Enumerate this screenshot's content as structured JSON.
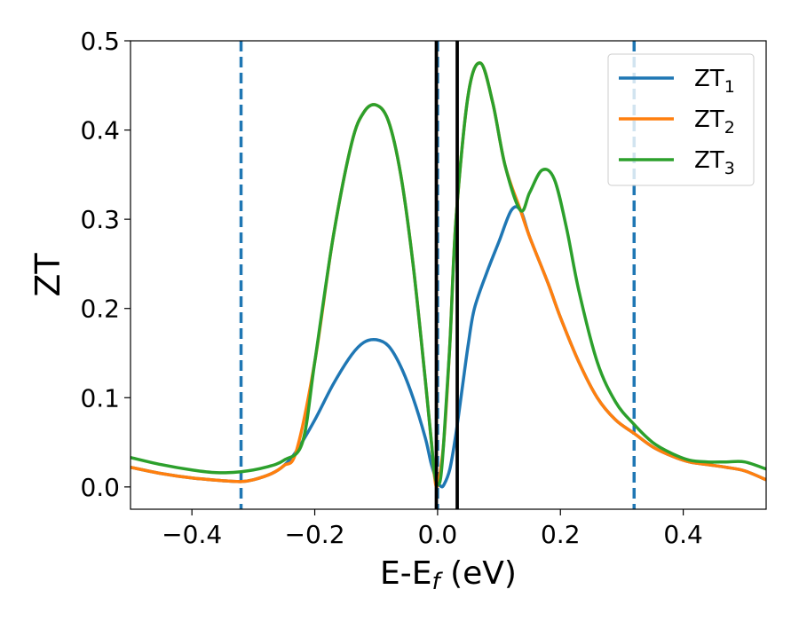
{
  "chart_data": {
    "type": "line",
    "xlabel": "E-E",
    "xlabel_sub": "f",
    "xlabel_unit": " (eV)",
    "ylabel": "ZT",
    "xlim": [
      -0.5,
      0.535
    ],
    "ylim": [
      -0.025,
      0.5
    ],
    "xticks": [
      -0.4,
      -0.2,
      0.0,
      0.2,
      0.4
    ],
    "xtick_labels": [
      "−0.4",
      "−0.2",
      "0.0",
      "0.2",
      "0.4"
    ],
    "yticks": [
      0.0,
      0.1,
      0.2,
      0.3,
      0.4,
      0.5
    ],
    "ytick_labels": [
      "0.0",
      "0.1",
      "0.2",
      "0.3",
      "0.4",
      "0.5"
    ],
    "grid": false,
    "legend_position": "top-right",
    "series": [
      {
        "name": "ZT",
        "name_sub": "1",
        "color": "#1f77b4",
        "x": [
          -0.5,
          -0.45,
          -0.4,
          -0.35,
          -0.32,
          -0.3,
          -0.27,
          -0.25,
          -0.23,
          -0.2,
          -0.17,
          -0.14,
          -0.12,
          -0.1,
          -0.08,
          -0.06,
          -0.04,
          -0.02,
          -0.01,
          0.0,
          0.005,
          0.01,
          0.02,
          0.03,
          0.04,
          0.05,
          0.06,
          0.08,
          0.1,
          0.12,
          0.135,
          0.15,
          0.18,
          0.2,
          0.23,
          0.26,
          0.29,
          0.32,
          0.35,
          0.38,
          0.41,
          0.44,
          0.47,
          0.5,
          0.535
        ],
        "y": [
          0.022,
          0.015,
          0.01,
          0.007,
          0.006,
          0.008,
          0.015,
          0.024,
          0.04,
          0.075,
          0.115,
          0.148,
          0.162,
          0.165,
          0.158,
          0.135,
          0.1,
          0.055,
          0.025,
          0.005,
          0.001,
          0.002,
          0.02,
          0.06,
          0.11,
          0.16,
          0.2,
          0.24,
          0.275,
          0.31,
          0.31,
          0.28,
          0.228,
          0.19,
          0.14,
          0.1,
          0.075,
          0.06,
          0.045,
          0.035,
          0.028,
          0.025,
          0.022,
          0.018,
          0.008
        ]
      },
      {
        "name": "ZT",
        "name_sub": "2",
        "color": "#ff7f0e",
        "x": [
          -0.5,
          -0.45,
          -0.4,
          -0.35,
          -0.32,
          -0.3,
          -0.27,
          -0.25,
          -0.23,
          -0.2,
          -0.17,
          -0.14,
          -0.12,
          -0.1,
          -0.08,
          -0.06,
          -0.04,
          -0.02,
          -0.01,
          -0.005,
          0.0,
          0.01,
          0.02,
          0.03,
          0.05,
          0.07,
          0.09,
          0.11,
          0.135,
          0.15,
          0.18,
          0.2,
          0.23,
          0.26,
          0.29,
          0.32,
          0.35,
          0.38,
          0.41,
          0.44,
          0.47,
          0.5,
          0.535
        ],
        "y": [
          0.022,
          0.015,
          0.01,
          0.007,
          0.006,
          0.008,
          0.015,
          0.024,
          0.04,
          0.14,
          0.28,
          0.385,
          0.42,
          0.428,
          0.41,
          0.35,
          0.25,
          0.12,
          0.05,
          0.012,
          0.002,
          0.05,
          0.16,
          0.3,
          0.44,
          0.475,
          0.43,
          0.36,
          0.31,
          0.28,
          0.228,
          0.19,
          0.14,
          0.1,
          0.075,
          0.06,
          0.045,
          0.035,
          0.028,
          0.025,
          0.022,
          0.018,
          0.008
        ]
      },
      {
        "name": "ZT",
        "name_sub": "3",
        "color": "#2ca02c",
        "x": [
          -0.5,
          -0.45,
          -0.4,
          -0.36,
          -0.32,
          -0.28,
          -0.25,
          -0.22,
          -0.2,
          -0.17,
          -0.14,
          -0.12,
          -0.1,
          -0.08,
          -0.06,
          -0.04,
          -0.02,
          -0.01,
          -0.005,
          0.0,
          0.005,
          0.01,
          0.02,
          0.03,
          0.05,
          0.07,
          0.09,
          0.11,
          0.135,
          0.15,
          0.17,
          0.19,
          0.21,
          0.23,
          0.26,
          0.29,
          0.32,
          0.35,
          0.38,
          0.41,
          0.44,
          0.47,
          0.5,
          0.535
        ],
        "y": [
          0.033,
          0.025,
          0.019,
          0.016,
          0.017,
          0.022,
          0.03,
          0.05,
          0.14,
          0.28,
          0.385,
          0.42,
          0.428,
          0.41,
          0.35,
          0.25,
          0.12,
          0.05,
          0.015,
          0.003,
          0.01,
          0.05,
          0.16,
          0.3,
          0.44,
          0.475,
          0.43,
          0.36,
          0.31,
          0.33,
          0.355,
          0.345,
          0.29,
          0.22,
          0.14,
          0.095,
          0.07,
          0.05,
          0.038,
          0.03,
          0.028,
          0.028,
          0.028,
          0.02
        ]
      }
    ],
    "vlines": [
      {
        "x": -0.32,
        "color": "#1f77b4",
        "style": "dashed"
      },
      {
        "x": 0.0,
        "color": "#1f77b4",
        "style": "dashed"
      },
      {
        "x": 0.32,
        "color": "#1f77b4",
        "style": "dashed"
      },
      {
        "x": -0.002,
        "color": "#000000",
        "style": "solid"
      },
      {
        "x": 0.032,
        "color": "#000000",
        "style": "solid"
      }
    ]
  }
}
